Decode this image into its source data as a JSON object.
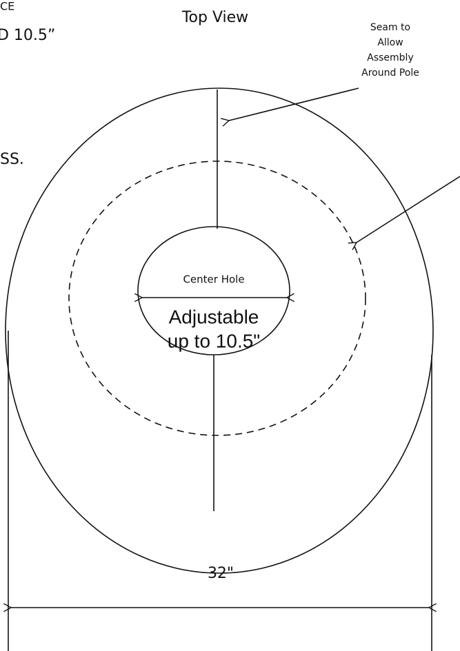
{
  "edge_fragments": [
    "CE",
    "D 10.5”",
    "SS."
  ],
  "title": "Top View",
  "seam_note": [
    "Seam to",
    "Allow",
    "Assembly",
    "Around Pole"
  ],
  "center_hole": {
    "label": "Center Hole",
    "size_note": [
      "Adjustable",
      "up to 10.5\""
    ]
  },
  "dimension": "32\""
}
